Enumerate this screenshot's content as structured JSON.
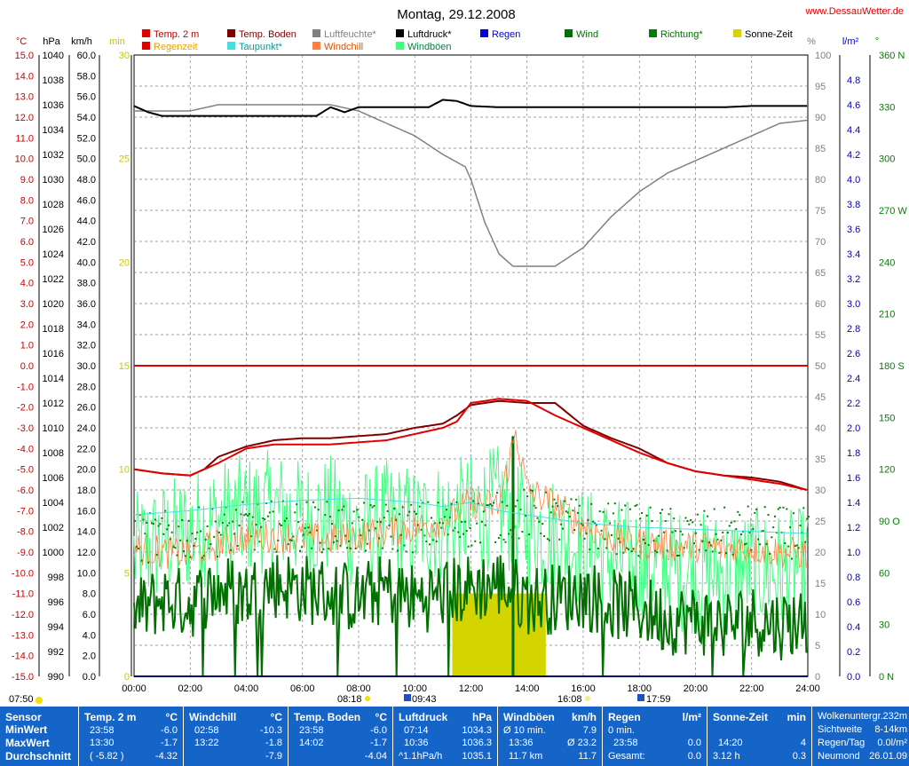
{
  "header": {
    "title": "Montag, 29.12.2008",
    "site": "www.DessauWetter.de"
  },
  "legend": [
    {
      "label": "Temp. 2 m",
      "color": "#e00000"
    },
    {
      "label": "Temp. Boden",
      "color": "#800000"
    },
    {
      "label": "Luftfeuchte*",
      "color": "#808080"
    },
    {
      "label": "Luftdruck*",
      "color": "#000000"
    },
    {
      "label": "Regen",
      "color": "#0000e0"
    },
    {
      "label": "Wind",
      "color": "#007000"
    },
    {
      "label": "Richtung*",
      "color": "#008000"
    },
    {
      "label": "Sonne-Zeit",
      "color": "#d4d400"
    },
    {
      "label": "Regenzeit",
      "color": "#e00000",
      "text_color": "#e8a000"
    },
    {
      "label": "Taupunkt*",
      "color": "#40e0e0"
    },
    {
      "label": "Windchill",
      "color": "#ff8040"
    },
    {
      "label": "Windböen",
      "color": "#40ff80"
    }
  ],
  "axes": {
    "temp": {
      "unit": "°C",
      "color": "#d00000",
      "ticks": [
        "15.0",
        "14.0",
        "13.0",
        "12.0",
        "11.0",
        "10.0",
        "9.0",
        "8.0",
        "7.0",
        "6.0",
        "5.0",
        "4.0",
        "3.0",
        "2.0",
        "1.0",
        "0.0",
        "-1.0",
        "-2.0",
        "-3.0",
        "-4.0",
        "-5.0",
        "-6.0",
        "-7.0",
        "-8.0",
        "-9.0",
        "-10.0",
        "-11.0",
        "-12.0",
        "-13.0",
        "-14.0",
        "-15.0"
      ]
    },
    "pressure": {
      "unit": "hPa",
      "color": "#000000",
      "ticks": [
        "1040",
        "1038",
        "1036",
        "1034",
        "1032",
        "1030",
        "1028",
        "1026",
        "1024",
        "1022",
        "1020",
        "1018",
        "1016",
        "1014",
        "1012",
        "1010",
        "1008",
        "1006",
        "1004",
        "1002",
        "1000",
        "998",
        "996",
        "994",
        "992",
        "990"
      ]
    },
    "wind": {
      "unit": "km/h",
      "color": "#000000",
      "ticks": [
        "60.0",
        "58.0",
        "56.0",
        "54.0",
        "52.0",
        "50.0",
        "48.0",
        "46.0",
        "44.0",
        "42.0",
        "40.0",
        "38.0",
        "36.0",
        "34.0",
        "32.0",
        "30.0",
        "28.0",
        "26.0",
        "24.0",
        "22.0",
        "20.0",
        "18.0",
        "16.0",
        "14.0",
        "12.0",
        "10.0",
        "8.0",
        "6.0",
        "4.0",
        "2.0",
        "0.0"
      ]
    },
    "minutes": {
      "unit": "min",
      "color": "#c8c800",
      "ticks": [
        "30",
        "25",
        "20",
        "15",
        "10",
        "5",
        "0"
      ]
    },
    "humidity": {
      "unit": "%",
      "color": "#808080",
      "ticks": [
        "100",
        "95",
        "90",
        "85",
        "80",
        "75",
        "70",
        "65",
        "60",
        "55",
        "50",
        "45",
        "40",
        "35",
        "30",
        "25",
        "20",
        "15",
        "10",
        "5",
        "0"
      ]
    },
    "rain": {
      "unit": "l/m²",
      "color": "#0000c0",
      "ticks": [
        "4.8",
        "4.6",
        "4.4",
        "4.2",
        "4.0",
        "3.8",
        "3.6",
        "3.4",
        "3.2",
        "3.0",
        "2.8",
        "2.6",
        "2.4",
        "2.2",
        "2.0",
        "1.8",
        "1.6",
        "1.4",
        "1.2",
        "1.0",
        "0.8",
        "0.6",
        "0.4",
        "0.2",
        "0.0"
      ]
    },
    "direction": {
      "unit": "°",
      "color": "#008000",
      "ticks": [
        {
          "v": 360,
          "t": "360 N"
        },
        {
          "v": 330,
          "t": "330"
        },
        {
          "v": 300,
          "t": "300"
        },
        {
          "v": 270,
          "t": "270 W"
        },
        {
          "v": 240,
          "t": "240"
        },
        {
          "v": 210,
          "t": "210"
        },
        {
          "v": 180,
          "t": "180 S"
        },
        {
          "v": 150,
          "t": "150"
        },
        {
          "v": 120,
          "t": "120"
        },
        {
          "v": 90,
          "t": "90 O"
        },
        {
          "v": 60,
          "t": "60"
        },
        {
          "v": 30,
          "t": "30"
        },
        {
          "v": 0,
          "t": "0 N"
        }
      ]
    },
    "time_ticks": [
      "00:00",
      "02:00",
      "04:00",
      "06:00",
      "08:00",
      "10:00",
      "12:00",
      "14:00",
      "16:00",
      "18:00",
      "20:00",
      "22:00",
      "24:00"
    ]
  },
  "sun_moon": {
    "sunrise": "08:18",
    "sunset": "16:08",
    "moonrise": "09:43",
    "moonset": "17:59",
    "left_time": "07:50"
  },
  "chart_data": {
    "type": "line",
    "title": "Montag, 29.12.2008",
    "x_range": [
      "00:00",
      "24:00"
    ],
    "ylim_temp": [
      -15,
      15
    ],
    "ylim_pressure": [
      990,
      1040
    ],
    "ylim_humidity": [
      0,
      100
    ],
    "ylim_wind": [
      0,
      60
    ],
    "grid": true,
    "series": [
      {
        "name": "Temp. 2 m",
        "unit": "°C",
        "color": "#e00000",
        "x": [
          0,
          1,
          2,
          3,
          4,
          5,
          6,
          7,
          8,
          9,
          10,
          11,
          11.5,
          12,
          13,
          14,
          15,
          16,
          17,
          18,
          19,
          20,
          21,
          22,
          23,
          23.97
        ],
        "y": [
          -5.0,
          -5.2,
          -5.3,
          -4.7,
          -4.0,
          -3.8,
          -3.8,
          -3.8,
          -3.7,
          -3.6,
          -3.3,
          -3.0,
          -2.7,
          -1.8,
          -1.6,
          -1.7,
          -2.4,
          -3.0,
          -3.6,
          -4.2,
          -4.7,
          -5.1,
          -5.3,
          -5.5,
          -5.7,
          -6.0
        ]
      },
      {
        "name": "Temp. Boden",
        "unit": "°C",
        "color": "#800000",
        "x": [
          0,
          1,
          2,
          2.5,
          3,
          4,
          5,
          6,
          7,
          8,
          9,
          10,
          11,
          11.5,
          12,
          13,
          14,
          15,
          16,
          17,
          18,
          19,
          20,
          21,
          22,
          23,
          23.97
        ],
        "y": [
          -5.0,
          -5.2,
          -5.3,
          -5.0,
          -4.4,
          -3.9,
          -3.6,
          -3.5,
          -3.5,
          -3.4,
          -3.3,
          -3.0,
          -2.8,
          -2.4,
          -1.9,
          -1.7,
          -1.8,
          -1.8,
          -2.9,
          -3.5,
          -4.0,
          -4.7,
          -5.1,
          -5.3,
          -5.4,
          -5.6,
          -6.0
        ]
      },
      {
        "name": "Taupunkt*",
        "unit": "°C",
        "color": "#40e0e0",
        "x": [
          0,
          2,
          4,
          6,
          8,
          10,
          11,
          12,
          13,
          14,
          16,
          18,
          20,
          22,
          23.97
        ],
        "y": [
          -7.2,
          -7.0,
          -6.7,
          -6.5,
          -6.4,
          -6.6,
          -6.8,
          -6.6,
          -7.0,
          -7.2,
          -7.6,
          -7.8,
          -7.9,
          -8.0,
          -8.1
        ]
      },
      {
        "name": "Luftfeuchte*",
        "unit": "%",
        "color": "#808080",
        "x": [
          0,
          2,
          3,
          4,
          5,
          6,
          7,
          8,
          8.5,
          9,
          10,
          11,
          11.8,
          12,
          12.5,
          13,
          13.5,
          14,
          15,
          16,
          17,
          18,
          19,
          20,
          21,
          22,
          23,
          23.97
        ],
        "y": [
          91,
          91,
          92,
          92,
          92,
          92,
          92,
          91,
          90,
          89,
          87,
          84,
          82,
          80,
          73,
          68,
          66,
          66,
          66,
          69,
          74,
          78,
          81,
          83,
          85,
          87,
          89,
          89.5
        ]
      },
      {
        "name": "Luftdruck*",
        "unit": "hPa",
        "color": "#000000",
        "x": [
          0,
          0.5,
          1,
          2,
          3,
          4,
          5,
          6,
          6.5,
          7,
          7.5,
          8,
          9,
          10,
          10.5,
          11,
          11.5,
          12,
          13,
          14,
          15,
          16,
          17,
          18,
          19,
          20,
          21,
          22,
          23,
          23.97
        ],
        "y": [
          1035.9,
          1035.4,
          1035.1,
          1035.1,
          1035.1,
          1035.1,
          1035.1,
          1035.1,
          1035.1,
          1035.8,
          1035.4,
          1035.8,
          1035.8,
          1035.8,
          1035.8,
          1036.4,
          1036.3,
          1035.9,
          1035.8,
          1035.8,
          1035.8,
          1035.8,
          1035.8,
          1035.8,
          1035.8,
          1035.8,
          1035.8,
          1035.9,
          1035.9,
          1035.9
        ]
      },
      {
        "name": "Wind",
        "unit": "km/h",
        "color": "#007000",
        "x": [
          0,
          1,
          2,
          3,
          4,
          5,
          6,
          7,
          8,
          9,
          10,
          11,
          12,
          13,
          14,
          15,
          16,
          17,
          18,
          19,
          20,
          21,
          22,
          23,
          23.97
        ],
        "y": [
          6.0,
          7.5,
          7.0,
          8.5,
          8.0,
          9.0,
          8.5,
          8.0,
          7.5,
          8.5,
          7.5,
          8.0,
          8.5,
          9.0,
          7.5,
          7.5,
          8.0,
          7.0,
          6.5,
          5.5,
          5.5,
          5.0,
          5.5,
          5.0,
          5.5
        ]
      },
      {
        "name": "Windböen",
        "unit": "km/h",
        "color": "#40ff80",
        "x": [
          0,
          1,
          2,
          3,
          4,
          5,
          6,
          7,
          8,
          9,
          10,
          11,
          12,
          13,
          14,
          15,
          16,
          17,
          18,
          19,
          20,
          21,
          22,
          23,
          23.97
        ],
        "y": [
          11.7,
          13.0,
          14.0,
          15.0,
          15.5,
          16.0,
          15.0,
          15.5,
          14.0,
          15.0,
          14.5,
          15.0,
          15.5,
          16.5,
          14.5,
          13.5,
          12.5,
          11.5,
          11.0,
          10.5,
          10.0,
          10.0,
          10.5,
          10.0,
          10.5
        ]
      },
      {
        "name": "Windchill",
        "unit": "°C",
        "color": "#ff8040",
        "x": [
          0,
          1,
          2,
          3,
          4,
          5,
          6,
          7,
          8,
          9,
          10,
          11,
          12,
          13,
          13.6,
          14,
          15,
          16,
          17,
          18,
          19,
          20,
          21,
          22,
          23,
          23.97
        ],
        "y": [
          -8.8,
          -9.0,
          -9.1,
          -8.6,
          -8.3,
          -8.2,
          -8.3,
          -8.4,
          -8.2,
          -8.0,
          -7.8,
          -7.5,
          -6.6,
          -6.8,
          -3.2,
          -6.0,
          -6.7,
          -7.7,
          -8.3,
          -8.6,
          -8.7,
          -8.7,
          -8.8,
          -8.8,
          -9.0,
          -9.1
        ]
      },
      {
        "name": "Richtung*",
        "unit": "°",
        "color": "#008000",
        "x": [
          0,
          2,
          4,
          6,
          8,
          10,
          12,
          14,
          16,
          18,
          20,
          22,
          23.97
        ],
        "y": [
          80,
          83,
          87,
          88,
          86,
          87,
          90,
          95,
          88,
          85,
          82,
          85,
          83
        ]
      }
    ],
    "sunshine": {
      "name": "Sonne-Zeit",
      "unit": "min",
      "x_start": "11:20",
      "x_end": "14:40",
      "value": 4,
      "total_min": 4
    }
  },
  "stats": {
    "sensor": {
      "header": "Sensor",
      "rows": [
        "MinWert",
        "MaxWert",
        "Durchschnitt"
      ]
    },
    "temp": {
      "header": "Temp. 2 m",
      "unit": "°C",
      "rows": [
        [
          "23:58",
          "-6.0"
        ],
        [
          "13:30",
          "-1.7"
        ],
        [
          "( -5.82 )",
          "-4.32"
        ]
      ]
    },
    "windchill": {
      "header": "Windchill",
      "unit": "°C",
      "rows": [
        [
          "02:58",
          "-10.3"
        ],
        [
          "13:22",
          "-1.8"
        ],
        [
          "",
          "-7.9"
        ]
      ]
    },
    "ground": {
      "header": "Temp. Boden",
      "unit": "°C",
      "rows": [
        [
          "23:58",
          "-6.0"
        ],
        [
          "14:02",
          "-1.7"
        ],
        [
          "",
          "-4.04"
        ]
      ]
    },
    "pressure": {
      "header": "Luftdruck",
      "unit": "hPa",
      "rows": [
        [
          "07:14",
          "1034.3"
        ],
        [
          "10:36",
          "1036.3"
        ],
        [
          "^1.1hPa/h",
          "1035.1"
        ]
      ]
    },
    "gusts": {
      "header": "Windböen",
      "unit": "km/h",
      "rows": [
        [
          "Ø 10 min.",
          "7.9"
        ],
        [
          "13:36",
          "Ø 23.2"
        ],
        [
          "11.7 km",
          "11.7"
        ]
      ]
    },
    "rain": {
      "header": "Regen",
      "unit": "l/m²",
      "rows": [
        [
          "0 min.",
          ""
        ],
        [
          "23:58",
          "0.0"
        ],
        [
          "Gesamt:",
          "0.0"
        ]
      ]
    },
    "sun": {
      "header": "Sonne-Zeit",
      "unit": "min",
      "rows": [
        [
          "",
          ""
        ],
        [
          "14:20",
          "4"
        ],
        [
          "3.12 h",
          "0.3"
        ]
      ]
    },
    "extra": {
      "rows": [
        [
          "Wolkenuntergr.",
          "232m"
        ],
        [
          "Sichtweite",
          "8-14km"
        ],
        [
          "Regen/Tag",
          "0.0l/m²"
        ],
        [
          "Neumond",
          "26.01.09"
        ]
      ]
    }
  }
}
